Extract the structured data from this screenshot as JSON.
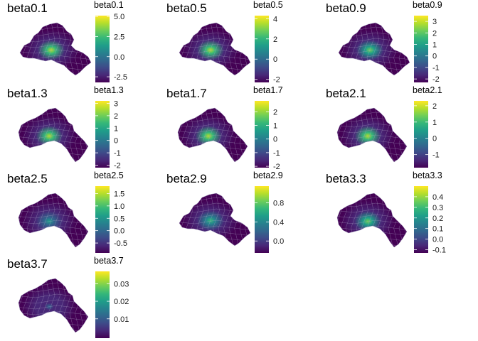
{
  "colors": {
    "viridis": [
      "#440154",
      "#482878",
      "#3e4a89",
      "#31688e",
      "#26828e",
      "#1f9e89",
      "#35b779",
      "#6ece58",
      "#b5de2b",
      "#fde725"
    ],
    "map_low": "#440154",
    "border": "#a8a2c4"
  },
  "chart_data": [
    {
      "type": "heatmap",
      "title": "beta0.1",
      "legend_title": "beta0.1",
      "legend_range": [
        -3.2,
        5.1
      ],
      "legend_ticks": [
        5.0,
        2.5,
        0.0,
        -2.5
      ],
      "legend_labels": [
        "5.0",
        "2.5",
        "0.0",
        "-2.5"
      ],
      "hotspot": 0.9,
      "map_shape": "a"
    },
    {
      "type": "heatmap",
      "title": "beta0.5",
      "legend_title": "beta0.5",
      "legend_range": [
        -2.3,
        4.3
      ],
      "legend_ticks": [
        4,
        2,
        0,
        -2
      ],
      "legend_labels": [
        "4",
        "2",
        "0",
        "-2"
      ],
      "hotspot": 0.85,
      "map_shape": "a"
    },
    {
      "type": "heatmap",
      "title": "beta0.9",
      "legend_title": "beta0.9",
      "legend_range": [
        -2.3,
        3.5
      ],
      "legend_ticks": [
        3,
        2,
        1,
        0,
        -1,
        -2
      ],
      "legend_labels": [
        "3",
        "2",
        "1",
        "0",
        "-1",
        "-2"
      ],
      "hotspot": 0.8,
      "map_shape": "a"
    },
    {
      "type": "heatmap",
      "title": "beta1.3",
      "legend_title": "beta1.3",
      "legend_range": [
        -2.2,
        3.2
      ],
      "legend_ticks": [
        3,
        2,
        1,
        0,
        -1,
        -2
      ],
      "legend_labels": [
        "3",
        "2",
        "1",
        "0",
        "-1",
        "-2"
      ],
      "hotspot": 0.9,
      "map_shape": "b"
    },
    {
      "type": "heatmap",
      "title": "beta1.7",
      "legend_title": "beta1.7",
      "legend_range": [
        -2.1,
        2.8
      ],
      "legend_ticks": [
        2,
        1,
        0,
        -1,
        -2
      ],
      "legend_labels": [
        "2",
        "1",
        "0",
        "-1",
        "-2"
      ],
      "hotspot": 0.9,
      "map_shape": "b"
    },
    {
      "type": "heatmap",
      "title": "beta2.1",
      "legend_title": "beta2.1",
      "legend_range": [
        -1.8,
        2.3
      ],
      "legend_ticks": [
        2,
        1,
        0,
        -1
      ],
      "legend_labels": [
        "2",
        "1",
        "0",
        "-1"
      ],
      "hotspot": 0.85,
      "map_shape": "b"
    },
    {
      "type": "heatmap",
      "title": "beta2.5",
      "legend_title": "beta2.5",
      "legend_range": [
        -0.9,
        1.8
      ],
      "legend_ticks": [
        1.5,
        1.0,
        0.5,
        0.0,
        -0.5
      ],
      "legend_labels": [
        "1.5",
        "1.0",
        "0.5",
        "0.0",
        "-0.5"
      ],
      "hotspot": 0.6,
      "map_shape": "b"
    },
    {
      "type": "heatmap",
      "title": "beta2.9",
      "legend_title": "beta2.9",
      "legend_range": [
        -0.25,
        1.15
      ],
      "legend_ticks": [
        0.8,
        0.4,
        0.0
      ],
      "legend_labels": [
        "0.8",
        "0.4",
        "0.0"
      ],
      "hotspot": 0.7,
      "map_shape": "a"
    },
    {
      "type": "heatmap",
      "title": "beta3.3",
      "legend_title": "beta3.3",
      "legend_range": [
        -0.13,
        0.5
      ],
      "legend_ticks": [
        0.4,
        0.3,
        0.2,
        0.1,
        0.0,
        -0.1
      ],
      "legend_labels": [
        "0.4",
        "0.3",
        "0.2",
        "0.1",
        "0.0",
        "-0.1"
      ],
      "hotspot": 0.75,
      "map_shape": "b"
    },
    {
      "type": "heatmap",
      "title": "beta3.7",
      "legend_title": "beta3.7",
      "legend_range": [
        -0.001,
        0.037
      ],
      "legend_ticks": [
        0.03,
        0.02,
        0.01
      ],
      "legend_labels": [
        "0.03",
        "0.02",
        "0.01"
      ],
      "hotspot": 0.35,
      "map_shape": "b"
    }
  ]
}
